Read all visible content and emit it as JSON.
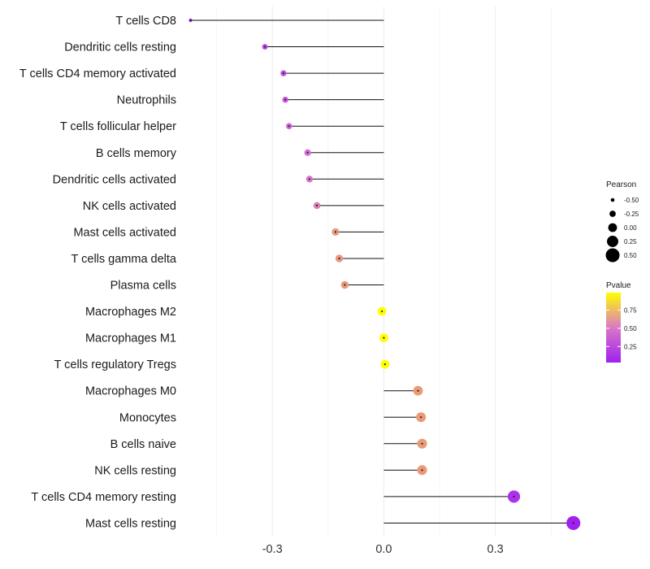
{
  "chart_data": {
    "type": "lollipop",
    "title": "",
    "xlabel": "",
    "ylabel": "",
    "xlim": [
      -0.53,
      0.55
    ],
    "x_ticks": [
      -0.3,
      0.0,
      0.3
    ],
    "x_tick_labels": [
      "-0.3",
      "0.0",
      "0.3"
    ],
    "categories": [
      "T cells CD8",
      "Dendritic cells resting",
      "T cells CD4 memory activated",
      "Neutrophils",
      "T cells follicular helper",
      "B cells memory",
      "Dendritic cells activated",
      "NK cells activated",
      "Mast cells activated",
      "T cells gamma delta",
      "Plasma cells",
      "Macrophages M2",
      "Macrophages M1",
      "T cells regulatory  Tregs ",
      "Macrophages M0",
      "Monocytes",
      "B cells naive",
      "NK cells resting",
      "T cells CD4 memory resting",
      "Mast cells resting"
    ],
    "pearson": [
      -0.52,
      -0.32,
      -0.27,
      -0.265,
      -0.255,
      -0.205,
      -0.2,
      -0.18,
      -0.13,
      -0.12,
      -0.105,
      -0.005,
      0.0,
      0.003,
      0.092,
      0.1,
      0.103,
      0.103,
      0.35,
      0.51
    ],
    "pvalue": [
      0.05,
      0.25,
      0.3,
      0.35,
      0.4,
      0.45,
      0.5,
      0.55,
      0.7,
      0.7,
      0.72,
      0.99,
      0.99,
      0.99,
      0.72,
      0.72,
      0.72,
      0.72,
      0.12,
      0.03
    ],
    "legend": {
      "size_title": "Pearson",
      "size_values": [
        -0.5,
        -0.25,
        0.0,
        0.25,
        0.5
      ],
      "size_labels": [
        "-0.50",
        "-0.25",
        "0.00",
        "0.25",
        "0.50"
      ],
      "color_title": "Pvalue",
      "color_values": [
        0.75,
        0.5,
        0.25
      ],
      "color_labels": [
        "0.75",
        "0.50",
        "0.25"
      ],
      "color_range": [
        0.03,
        0.99
      ],
      "color_low": "#a020f0",
      "color_high": "#ffff00"
    },
    "grid": true
  }
}
